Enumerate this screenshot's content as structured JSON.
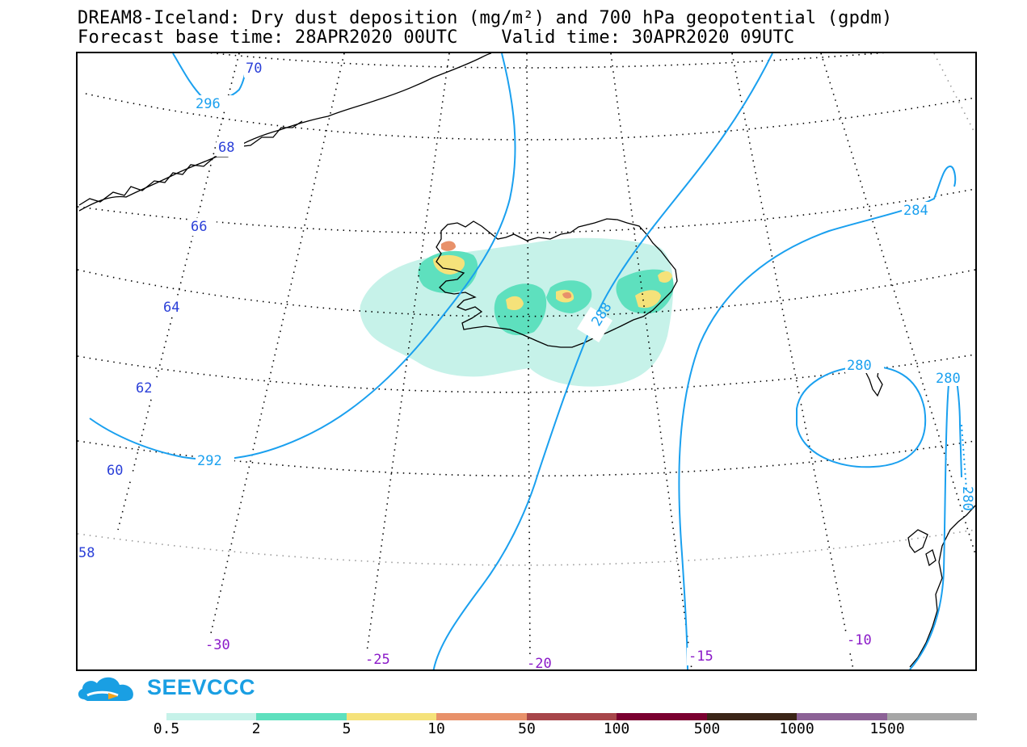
{
  "title_line1": "DREAM8-Iceland: Dry dust deposition (mg/m²) and 700 hPa geopotential (gpdm)",
  "title_line2": "Forecast base time: 28APR2020 00UTC    Valid time: 30APR2020 09UTC",
  "logo_text": "SEEVCCC",
  "logo_icon": "cloud-logo-icon",
  "colors": {
    "contour": "#1aa0ef",
    "lat_label": "#2a3fd8",
    "lon_label": "#8a19c8",
    "coast": "#000000"
  },
  "lat_labels": [
    "70",
    "68",
    "66",
    "64",
    "62",
    "60",
    "58"
  ],
  "lon_labels": [
    "-30",
    "-25",
    "-20",
    "-15",
    "-10"
  ],
  "contour_labels": [
    "296",
    "292",
    "288",
    "284",
    "280",
    "280",
    "280"
  ],
  "legend": {
    "labels": [
      "0.5",
      "2",
      "5",
      "10",
      "50",
      "100",
      "500",
      "1000",
      "1500"
    ],
    "colors": [
      "#c6f2e9",
      "#5ee0be",
      "#f5e27a",
      "#e8916a",
      "#a7464a",
      "#7a0030",
      "#3b2517",
      "#8c6296",
      "#a6a6a6"
    ]
  }
}
